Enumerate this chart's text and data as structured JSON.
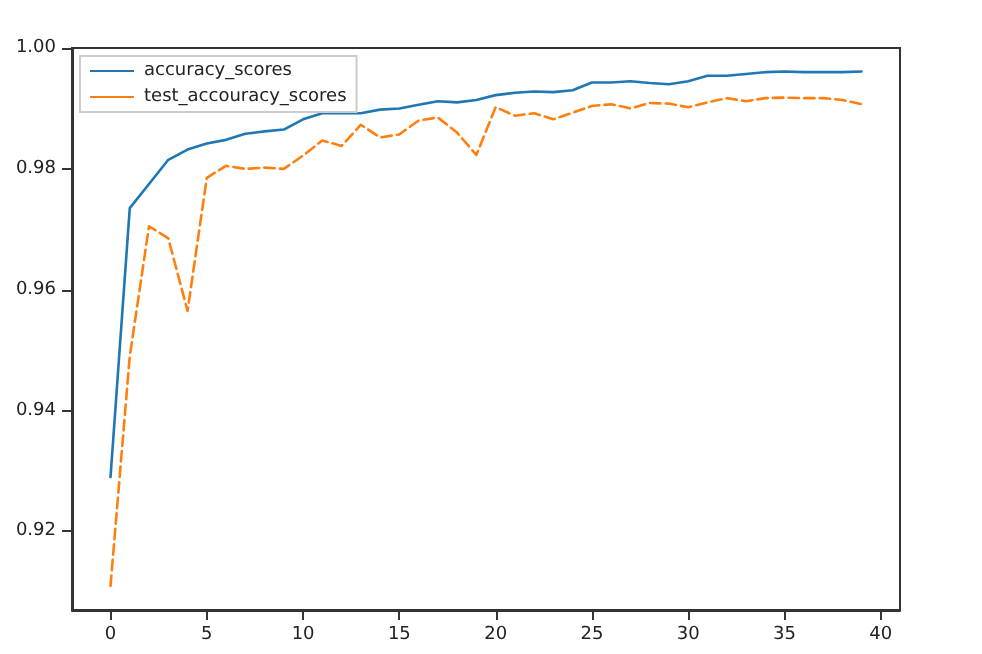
{
  "chart_data": {
    "type": "line",
    "x": [
      0,
      1,
      2,
      3,
      4,
      5,
      6,
      7,
      8,
      9,
      10,
      11,
      12,
      13,
      14,
      15,
      16,
      17,
      18,
      19,
      20,
      21,
      22,
      23,
      24,
      25,
      26,
      27,
      28,
      29,
      30,
      31,
      32,
      33,
      34,
      35,
      36,
      37,
      38,
      39
    ],
    "series": [
      {
        "name": "accuracy_scores",
        "color": "#1f77b4",
        "line_style": "solid",
        "values": [
          0.929,
          0.9735,
          0.9775,
          0.9815,
          0.9832,
          0.9842,
          0.9848,
          0.9858,
          0.9862,
          0.9865,
          0.9882,
          0.9892,
          0.9892,
          0.9892,
          0.9898,
          0.99,
          0.9906,
          0.9912,
          0.991,
          0.9914,
          0.9922,
          0.9926,
          0.9928,
          0.9927,
          0.993,
          0.9943,
          0.9943,
          0.9945,
          0.9942,
          0.994,
          0.9945,
          0.9954,
          0.9954,
          0.9957,
          0.996,
          0.9961,
          0.996,
          0.996,
          0.996,
          0.9961
        ]
      },
      {
        "name": "test_accouracy_scores",
        "color": "#ff7f0e",
        "line_style": "dashed",
        "values": [
          0.911,
          0.949,
          0.9705,
          0.9685,
          0.9565,
          0.9785,
          0.9805,
          0.98,
          0.9802,
          0.98,
          0.9822,
          0.9847,
          0.9838,
          0.9873,
          0.9852,
          0.9857,
          0.988,
          0.9885,
          0.986,
          0.9823,
          0.9902,
          0.9888,
          0.9892,
          0.9882,
          0.9893,
          0.9904,
          0.9907,
          0.99,
          0.9909,
          0.9908,
          0.9902,
          0.991,
          0.9917,
          0.9912,
          0.9917,
          0.9918,
          0.9917,
          0.9917,
          0.9914,
          0.9907
        ]
      }
    ],
    "xlim": [
      -2,
      41
    ],
    "xticks": [
      0,
      5,
      10,
      15,
      20,
      25,
      30,
      35,
      40
    ],
    "ylim": [
      0.907,
      1.0
    ],
    "yticks": [
      0.92,
      0.94,
      0.96,
      0.98,
      {
        "value": 1.0,
        "label": "1.00"
      }
    ],
    "legend": "top left",
    "grid": false,
    "marker": "none"
  }
}
